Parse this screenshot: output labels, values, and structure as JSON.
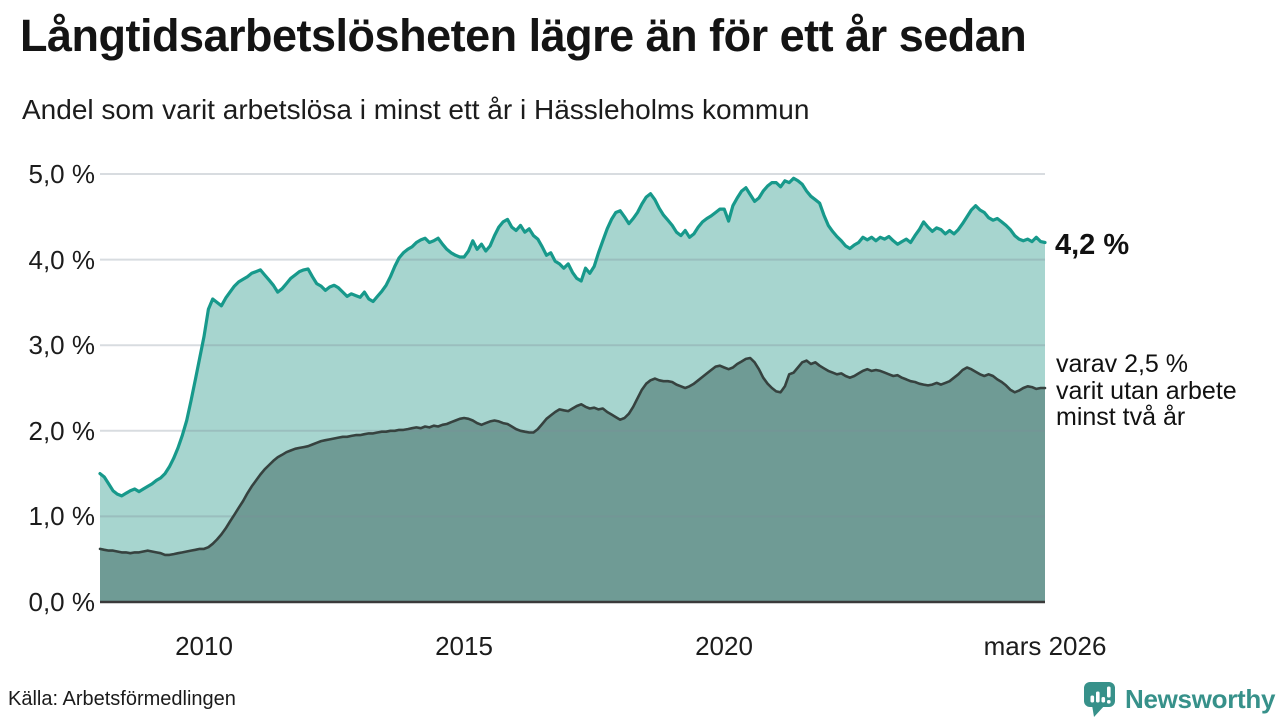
{
  "header": {
    "title": "Långtidsarbetslösheten lägre än för ett år sedan",
    "subtitle": "Andel som varit arbetslösa i minst ett år i Hässleholms kommun"
  },
  "chart_data": {
    "type": "area",
    "title": "Långtidsarbetslösheten lägre än för ett år sedan",
    "subtitle": "Andel som varit arbetslösa i minst ett år i Hässleholms kommun",
    "x_unit": "month",
    "x_start": "2008-01",
    "x_end": "2026-03",
    "ylim": [
      0,
      5
    ],
    "grid": true,
    "y_tick_labels": [
      "0,0 %",
      "1,0 %",
      "2,0 %",
      "3,0 %",
      "4,0 %",
      "5,0 %"
    ],
    "x_ticks": [
      {
        "label": "2010",
        "month_index": 24
      },
      {
        "label": "2015",
        "month_index": 84
      },
      {
        "label": "2020",
        "month_index": 144
      },
      {
        "label": "mars 2026",
        "month_index": 218
      }
    ],
    "series": [
      {
        "name": "Andel som varit arbetslösa i minst ett år",
        "end_value": 4.2,
        "line_color": "#17998b",
        "fill_color": "#a7d5cf",
        "values": [
          1.5,
          1.46,
          1.38,
          1.3,
          1.26,
          1.24,
          1.27,
          1.3,
          1.32,
          1.29,
          1.32,
          1.35,
          1.38,
          1.42,
          1.45,
          1.5,
          1.58,
          1.68,
          1.8,
          1.95,
          2.12,
          2.35,
          2.6,
          2.85,
          3.1,
          3.42,
          3.54,
          3.5,
          3.46,
          3.55,
          3.62,
          3.69,
          3.74,
          3.77,
          3.8,
          3.84,
          3.86,
          3.88,
          3.82,
          3.76,
          3.7,
          3.62,
          3.66,
          3.72,
          3.78,
          3.82,
          3.86,
          3.88,
          3.89,
          3.8,
          3.72,
          3.69,
          3.64,
          3.68,
          3.7,
          3.67,
          3.62,
          3.57,
          3.6,
          3.58,
          3.56,
          3.62,
          3.54,
          3.51,
          3.57,
          3.63,
          3.7,
          3.8,
          3.92,
          4.02,
          4.08,
          4.12,
          4.15,
          4.2,
          4.23,
          4.25,
          4.2,
          4.22,
          4.25,
          4.18,
          4.12,
          4.08,
          4.05,
          4.03,
          4.03,
          4.1,
          4.22,
          4.12,
          4.18,
          4.1,
          4.16,
          4.28,
          4.38,
          4.44,
          4.47,
          4.38,
          4.34,
          4.4,
          4.32,
          4.36,
          4.28,
          4.24,
          4.15,
          4.05,
          4.08,
          3.98,
          3.95,
          3.9,
          3.95,
          3.85,
          3.78,
          3.75,
          3.9,
          3.84,
          3.92,
          4.08,
          4.22,
          4.36,
          4.47,
          4.55,
          4.57,
          4.5,
          4.42,
          4.48,
          4.55,
          4.65,
          4.73,
          4.77,
          4.7,
          4.6,
          4.52,
          4.46,
          4.4,
          4.32,
          4.28,
          4.34,
          4.26,
          4.3,
          4.38,
          4.44,
          4.48,
          4.51,
          4.55,
          4.59,
          4.59,
          4.45,
          4.63,
          4.72,
          4.8,
          4.84,
          4.76,
          4.68,
          4.72,
          4.8,
          4.86,
          4.9,
          4.9,
          4.85,
          4.92,
          4.9,
          4.95,
          4.92,
          4.88,
          4.8,
          4.74,
          4.7,
          4.66,
          4.52,
          4.4,
          4.33,
          4.27,
          4.22,
          4.16,
          4.13,
          4.17,
          4.2,
          4.26,
          4.23,
          4.26,
          4.22,
          4.26,
          4.24,
          4.27,
          4.22,
          4.18,
          4.21,
          4.24,
          4.2,
          4.28,
          4.35,
          4.44,
          4.38,
          4.33,
          4.37,
          4.35,
          4.3,
          4.34,
          4.3,
          4.35,
          4.42,
          4.5,
          4.58,
          4.63,
          4.58,
          4.55,
          4.49,
          4.46,
          4.48,
          4.44,
          4.4,
          4.35,
          4.28,
          4.24,
          4.22,
          4.24,
          4.21,
          4.26,
          4.21,
          4.2
        ]
      },
      {
        "name": "varav arbetslösa minst två år",
        "end_value": 2.5,
        "line_color": "#36423f",
        "fill_color": "#6f9b95",
        "values": [
          0.62,
          0.61,
          0.6,
          0.6,
          0.59,
          0.58,
          0.58,
          0.57,
          0.58,
          0.58,
          0.59,
          0.6,
          0.59,
          0.58,
          0.57,
          0.55,
          0.55,
          0.56,
          0.57,
          0.58,
          0.59,
          0.6,
          0.61,
          0.62,
          0.62,
          0.64,
          0.68,
          0.73,
          0.79,
          0.86,
          0.94,
          1.02,
          1.1,
          1.18,
          1.27,
          1.35,
          1.42,
          1.49,
          1.55,
          1.6,
          1.65,
          1.69,
          1.72,
          1.75,
          1.77,
          1.79,
          1.8,
          1.81,
          1.82,
          1.84,
          1.86,
          1.88,
          1.89,
          1.9,
          1.91,
          1.92,
          1.93,
          1.93,
          1.94,
          1.95,
          1.95,
          1.96,
          1.97,
          1.97,
          1.98,
          1.99,
          1.99,
          2.0,
          2.0,
          2.01,
          2.01,
          2.02,
          2.03,
          2.04,
          2.03,
          2.05,
          2.04,
          2.06,
          2.05,
          2.07,
          2.08,
          2.1,
          2.12,
          2.14,
          2.15,
          2.14,
          2.12,
          2.09,
          2.07,
          2.09,
          2.11,
          2.12,
          2.11,
          2.09,
          2.08,
          2.05,
          2.02,
          2.0,
          1.99,
          1.98,
          1.98,
          2.02,
          2.08,
          2.14,
          2.18,
          2.22,
          2.25,
          2.24,
          2.23,
          2.26,
          2.29,
          2.31,
          2.28,
          2.26,
          2.27,
          2.25,
          2.26,
          2.22,
          2.19,
          2.16,
          2.13,
          2.15,
          2.2,
          2.28,
          2.38,
          2.48,
          2.55,
          2.59,
          2.61,
          2.59,
          2.58,
          2.58,
          2.57,
          2.54,
          2.52,
          2.5,
          2.52,
          2.55,
          2.59,
          2.63,
          2.67,
          2.71,
          2.75,
          2.76,
          2.74,
          2.72,
          2.74,
          2.78,
          2.81,
          2.84,
          2.85,
          2.8,
          2.72,
          2.62,
          2.55,
          2.5,
          2.46,
          2.45,
          2.52,
          2.66,
          2.68,
          2.74,
          2.8,
          2.82,
          2.78,
          2.8,
          2.76,
          2.73,
          2.7,
          2.68,
          2.66,
          2.67,
          2.64,
          2.62,
          2.64,
          2.67,
          2.7,
          2.72,
          2.7,
          2.71,
          2.7,
          2.68,
          2.66,
          2.64,
          2.65,
          2.62,
          2.6,
          2.58,
          2.57,
          2.55,
          2.54,
          2.53,
          2.54,
          2.56,
          2.54,
          2.56,
          2.58,
          2.62,
          2.66,
          2.71,
          2.74,
          2.72,
          2.69,
          2.66,
          2.64,
          2.66,
          2.64,
          2.6,
          2.57,
          2.53,
          2.48,
          2.45,
          2.47,
          2.5,
          2.52,
          2.51,
          2.49,
          2.5,
          2.5
        ]
      }
    ],
    "annotations": [
      {
        "text": "4,2 %",
        "value": 4.2,
        "bold": true
      },
      {
        "text": "varav 2,5 %\nvarit utan arbete\nminst två år",
        "value": 2.5,
        "bold": false
      }
    ],
    "legend_position": "right-annotations"
  },
  "colors": {
    "grid": "rgba(125,138,152,0.30)",
    "axis": "#3a3a3a",
    "background": "#ffffff"
  },
  "footer": {
    "source": "Källa: Arbetsförmedlingen",
    "brand": "Newsworthy",
    "brand_color": "#37918a"
  }
}
